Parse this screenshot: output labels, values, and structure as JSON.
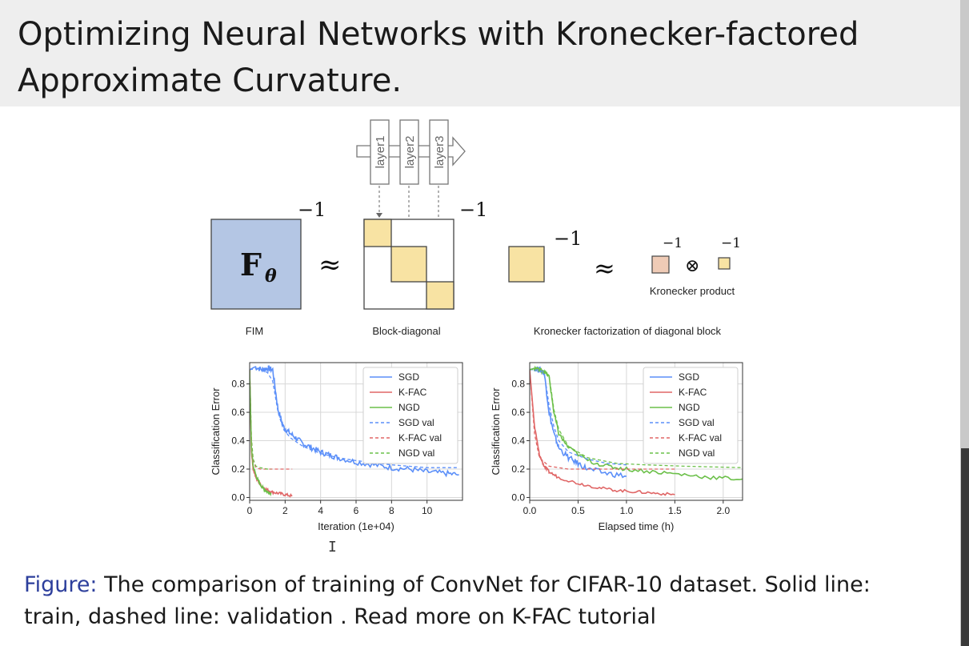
{
  "slide": {
    "title_line1": "Optimizing Neural Networks with Kronecker-factored",
    "title_line2": "Approximate Curvature."
  },
  "diagram": {
    "layers": [
      "layer1",
      "layer2",
      "layer3"
    ],
    "fim_symbol": "F",
    "fim_subscript": "θ",
    "inverse": "−1",
    "approx": "≈",
    "otimes": "⊗",
    "kronecker_product_label": "Kronecker product",
    "label_fim": "FIM",
    "label_block_diagonal": "Block-diagonal",
    "label_kronecker_factorization": "Kronecker factorization of diagonal block",
    "colors": {
      "fim_fill": "#b4c6e4",
      "block_fill": "#f8e3a3",
      "kron_left_fill": "#efcbb6"
    }
  },
  "chart_data": [
    {
      "type": "line",
      "xlabel": "Iteration (1e+04)",
      "ylabel": "Classification Error",
      "xlim": [
        0,
        12
      ],
      "ylim": [
        -0.02,
        0.95
      ],
      "xticks": [
        0,
        2,
        4,
        6,
        8,
        10
      ],
      "xtick_labels": [
        "0",
        "2",
        "4",
        "6",
        "8",
        "10"
      ],
      "yticks": [
        0.0,
        0.2,
        0.4,
        0.6,
        0.8
      ],
      "ytick_labels": [
        "0.0",
        "0.2",
        "0.4",
        "0.6",
        "0.8"
      ],
      "grid": true,
      "legend_position": "top-right",
      "series": [
        {
          "name": "SGD",
          "color": "#5b8ff9",
          "dash": false,
          "noise": 0.02,
          "x": [
            0,
            0.3,
            0.7,
            1.0,
            1.3,
            1.6,
            1.9,
            2.2,
            2.6,
            3.0,
            3.5,
            4.0,
            4.5,
            5.0,
            6.0,
            7.0,
            8.0,
            9.0,
            10.0,
            11.0,
            11.8
          ],
          "y": [
            0.9,
            0.92,
            0.9,
            0.91,
            0.9,
            0.62,
            0.5,
            0.46,
            0.42,
            0.38,
            0.35,
            0.32,
            0.3,
            0.28,
            0.25,
            0.23,
            0.21,
            0.2,
            0.18,
            0.17,
            0.16
          ]
        },
        {
          "name": "K-FAC",
          "color": "#e06666",
          "dash": false,
          "noise": 0.01,
          "x": [
            0,
            0.1,
            0.2,
            0.4,
            0.6,
            0.9,
            1.2,
            1.6,
            2.0,
            2.4
          ],
          "y": [
            0.9,
            0.32,
            0.2,
            0.13,
            0.09,
            0.06,
            0.04,
            0.03,
            0.02,
            0.01
          ]
        },
        {
          "name": "NGD",
          "color": "#6cc04a",
          "dash": false,
          "noise": 0.01,
          "x": [
            0,
            0.1,
            0.2,
            0.4,
            0.6,
            0.8,
            1.0,
            1.2
          ],
          "y": [
            0.9,
            0.35,
            0.22,
            0.14,
            0.09,
            0.06,
            0.04,
            0.03
          ]
        },
        {
          "name": "SGD val",
          "color": "#5b8ff9",
          "dash": true,
          "noise": 0,
          "x": [
            0,
            0.5,
            1.0,
            1.3,
            1.6,
            1.9,
            2.3,
            3.0,
            4.0,
            5.0,
            6.0,
            8.0,
            10.0,
            11.8
          ],
          "y": [
            0.9,
            0.91,
            0.88,
            0.82,
            0.6,
            0.48,
            0.42,
            0.36,
            0.31,
            0.28,
            0.26,
            0.23,
            0.21,
            0.21
          ]
        },
        {
          "name": "K-FAC val",
          "color": "#e06666",
          "dash": true,
          "noise": 0,
          "x": [
            0,
            0.1,
            0.2,
            0.35,
            0.6,
            1.0,
            1.5,
            2.0,
            2.4
          ],
          "y": [
            0.9,
            0.4,
            0.26,
            0.21,
            0.2,
            0.2,
            0.2,
            0.2,
            0.2
          ]
        },
        {
          "name": "NGD val",
          "color": "#6cc04a",
          "dash": true,
          "noise": 0,
          "x": [
            0,
            0.1,
            0.2,
            0.35,
            0.6,
            1.0,
            1.2
          ],
          "y": [
            0.9,
            0.42,
            0.27,
            0.22,
            0.21,
            0.2,
            0.2
          ]
        }
      ]
    },
    {
      "type": "line",
      "xlabel": "Elapsed time (h)",
      "ylabel": "Classification Error",
      "xlim": [
        0,
        2.2
      ],
      "ylim": [
        -0.02,
        0.95
      ],
      "xticks": [
        0,
        0.5,
        1.0,
        1.5,
        2.0
      ],
      "xtick_labels": [
        "0.0",
        "0.5",
        "1.0",
        "1.5",
        "2.0"
      ],
      "yticks": [
        0.0,
        0.2,
        0.4,
        0.6,
        0.8
      ],
      "ytick_labels": [
        "0.0",
        "0.2",
        "0.4",
        "0.6",
        "0.8"
      ],
      "grid": true,
      "legend_position": "top-right",
      "series": [
        {
          "name": "SGD",
          "color": "#5b8ff9",
          "dash": false,
          "noise": 0.02,
          "x": [
            0,
            0.05,
            0.1,
            0.15,
            0.2,
            0.25,
            0.3,
            0.4,
            0.5,
            0.6,
            0.8,
            1.0
          ],
          "y": [
            0.9,
            0.91,
            0.9,
            0.88,
            0.6,
            0.45,
            0.35,
            0.28,
            0.24,
            0.2,
            0.17,
            0.15
          ]
        },
        {
          "name": "K-FAC",
          "color": "#e06666",
          "dash": false,
          "noise": 0.01,
          "x": [
            0,
            0.05,
            0.1,
            0.15,
            0.2,
            0.3,
            0.5,
            0.7,
            0.9,
            1.1,
            1.3,
            1.5
          ],
          "y": [
            0.9,
            0.5,
            0.3,
            0.22,
            0.18,
            0.14,
            0.1,
            0.07,
            0.05,
            0.04,
            0.03,
            0.02
          ]
        },
        {
          "name": "NGD",
          "color": "#6cc04a",
          "dash": false,
          "noise": 0.015,
          "x": [
            0,
            0.05,
            0.1,
            0.15,
            0.2,
            0.25,
            0.3,
            0.4,
            0.6,
            0.8,
            1.0,
            1.3,
            1.6,
            1.9,
            2.2
          ],
          "y": [
            0.9,
            0.91,
            0.9,
            0.89,
            0.85,
            0.6,
            0.45,
            0.35,
            0.26,
            0.22,
            0.2,
            0.18,
            0.16,
            0.14,
            0.13
          ]
        },
        {
          "name": "SGD val",
          "color": "#5b8ff9",
          "dash": true,
          "noise": 0,
          "x": [
            0,
            0.1,
            0.15,
            0.2,
            0.25,
            0.3,
            0.4,
            0.6,
            0.8,
            1.0
          ],
          "y": [
            0.9,
            0.9,
            0.88,
            0.65,
            0.5,
            0.4,
            0.32,
            0.27,
            0.24,
            0.23
          ]
        },
        {
          "name": "K-FAC val",
          "color": "#e06666",
          "dash": true,
          "noise": 0,
          "x": [
            0,
            0.05,
            0.1,
            0.2,
            0.4,
            0.8,
            1.5
          ],
          "y": [
            0.9,
            0.45,
            0.28,
            0.22,
            0.2,
            0.2,
            0.2
          ]
        },
        {
          "name": "NGD val",
          "color": "#6cc04a",
          "dash": true,
          "noise": 0,
          "x": [
            0,
            0.1,
            0.2,
            0.25,
            0.3,
            0.4,
            0.6,
            0.9,
            1.2,
            1.6,
            2.2
          ],
          "y": [
            0.9,
            0.91,
            0.86,
            0.62,
            0.48,
            0.36,
            0.28,
            0.24,
            0.23,
            0.22,
            0.21
          ]
        }
      ]
    }
  ],
  "caption": {
    "label": "Figure:",
    "line1_rest": " The comparison of training of ConvNet for CIFAR-10 dataset. Solid line:",
    "line2": "train, dashed line: validation . Read more on K-FAC tutorial"
  },
  "cursor_glyph": "I"
}
